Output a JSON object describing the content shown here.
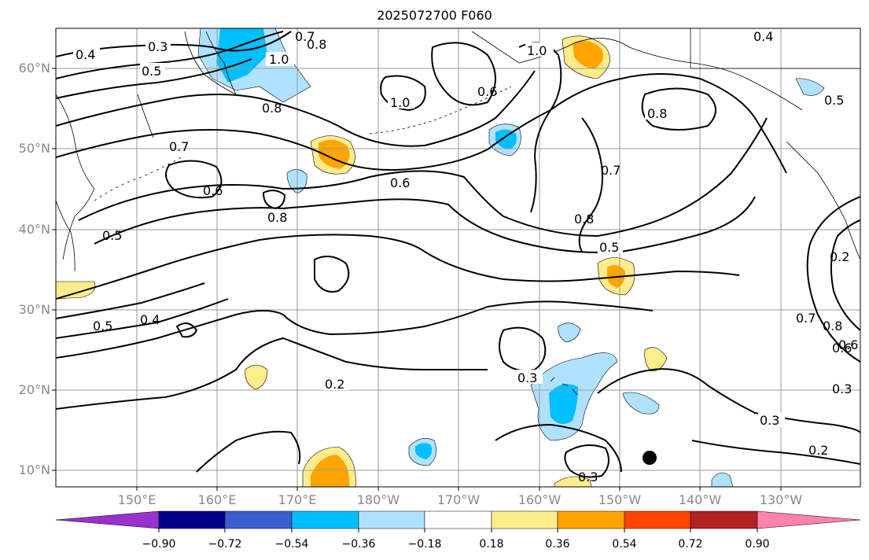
{
  "title": "2025072700 F060",
  "latitude_labels": [
    "60°N",
    "50°N",
    "40°N",
    "30°N",
    "20°N",
    "10°N"
  ],
  "longitude_labels": [
    "150°E",
    "160°E",
    "170°E",
    "180°W",
    "170°W",
    "160°W",
    "150°W",
    "140°W",
    "130°W"
  ],
  "colorbar": {
    "colors": [
      "#9932cc",
      "#00008b",
      "#3a5fcd",
      "#00bfff",
      "#b0e2ff",
      "#ffffff",
      "#ffec8b",
      "#ffa500",
      "#ff4500",
      "#b22222",
      "#ff82ab"
    ],
    "ticks": [
      "−0.90",
      "−0.72",
      "−0.54",
      "−0.36",
      "−0.18",
      "0.18",
      "0.36",
      "0.54",
      "0.72",
      "0.90"
    ]
  },
  "contour_labels": [
    "0.3",
    "0.4",
    "0.5",
    "0.7",
    "0.8",
    "1.0",
    "0.6",
    "0.2",
    "0.5",
    "1.0",
    "0.8",
    "0.7",
    "0.6",
    "0.5",
    "0.8",
    "0.6",
    "0.8",
    "0.7",
    "0.8",
    "0.6",
    "0.3",
    "0.2",
    "0.3",
    "0.4",
    "0.3",
    "0.3",
    "0.2",
    "0.5",
    "0.6",
    "0.7",
    "0.8",
    "0.4",
    "0.5",
    "1.0"
  ]
}
